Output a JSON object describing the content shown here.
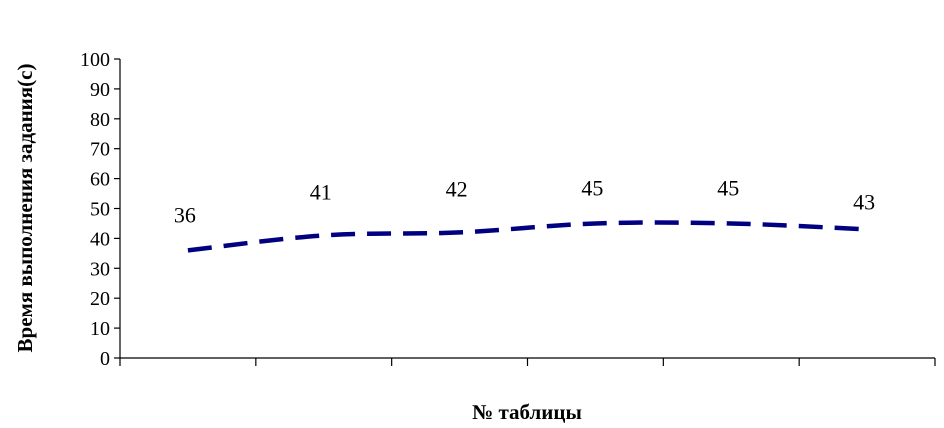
{
  "chart_data": {
    "type": "line",
    "x": [
      1,
      2,
      3,
      4,
      5,
      6
    ],
    "series": [
      {
        "values": [
          36,
          41,
          42,
          45,
          45,
          43
        ],
        "data_labels": [
          "36",
          "41",
          "42",
          "45",
          "45",
          "43"
        ],
        "color": "#000080",
        "line_style": "dashed"
      }
    ],
    "xlabel": "№ таблицы",
    "ylabel": "Время выполнения задания(с)",
    "ylim": [
      0,
      100
    ],
    "y_ticks": [
      0,
      10,
      20,
      30,
      40,
      50,
      60,
      70,
      80,
      90,
      100
    ],
    "x_tick_labels": false,
    "grid": false,
    "legend": "none"
  }
}
